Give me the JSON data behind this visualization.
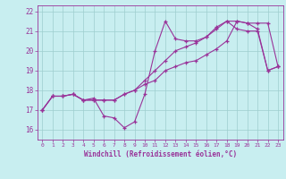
{
  "xlabel": "Windchill (Refroidissement éolien,°C)",
  "background_color": "#c8eef0",
  "grid_color": "#9ecece",
  "line_color": "#993399",
  "xlim": [
    -0.5,
    23.5
  ],
  "ylim": [
    15.5,
    22.3
  ],
  "xticks": [
    0,
    1,
    2,
    3,
    4,
    5,
    6,
    7,
    8,
    9,
    10,
    11,
    12,
    13,
    14,
    15,
    16,
    17,
    18,
    19,
    20,
    21,
    22,
    23
  ],
  "yticks": [
    16,
    17,
    18,
    19,
    20,
    21,
    22
  ],
  "series": [
    [
      17.0,
      17.7,
      17.7,
      17.8,
      17.5,
      17.6,
      16.7,
      16.6,
      16.1,
      16.4,
      17.8,
      20.0,
      21.5,
      20.6,
      20.5,
      20.5,
      20.7,
      21.2,
      21.5,
      21.1,
      21.0,
      21.0,
      19.0,
      19.2
    ],
    [
      17.0,
      17.7,
      17.7,
      17.8,
      17.5,
      17.5,
      17.5,
      17.5,
      17.8,
      18.0,
      18.3,
      18.5,
      19.0,
      19.2,
      19.4,
      19.5,
      19.8,
      20.1,
      20.5,
      21.5,
      21.4,
      21.4,
      21.4,
      19.2
    ],
    [
      17.0,
      17.7,
      17.7,
      17.8,
      17.5,
      17.5,
      17.5,
      17.5,
      17.8,
      18.0,
      18.5,
      19.0,
      19.5,
      20.0,
      20.2,
      20.4,
      20.7,
      21.1,
      21.5,
      21.5,
      21.4,
      21.1,
      19.0,
      19.2
    ]
  ],
  "figsize": [
    3.2,
    2.0
  ],
  "dpi": 100
}
